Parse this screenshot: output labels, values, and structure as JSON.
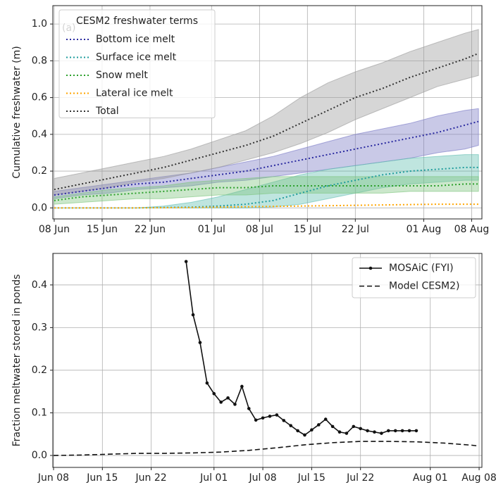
{
  "chart_data": [
    {
      "type": "line",
      "ylabel": "Cumulative freshwater (m)",
      "panel_label": "(a)",
      "legend_title": "CESM2 freshwater terms",
      "legend_loc": "upper left",
      "grid": true,
      "xlim": [
        7.8,
        70.5
      ],
      "ylim": [
        -0.06,
        1.1
      ],
      "xticks": [
        {
          "value": 8,
          "label": "08 Jun"
        },
        {
          "value": 15,
          "label": "15 Jun"
        },
        {
          "value": 22,
          "label": "22 Jun"
        },
        {
          "value": 31,
          "label": "01 Jul"
        },
        {
          "value": 38,
          "label": "08 Jul"
        },
        {
          "value": 45,
          "label": "15 Jul"
        },
        {
          "value": 52,
          "label": "22 Jul"
        },
        {
          "value": 62,
          "label": "01 Aug"
        },
        {
          "value": 69,
          "label": "08 Aug"
        }
      ],
      "yticks": [
        {
          "value": 0,
          "label": "0.0"
        },
        0.2,
        0.4,
        0.6,
        0.8,
        {
          "value": 1,
          "label": "1.0"
        }
      ],
      "x": [
        8,
        12,
        16,
        20,
        24,
        28,
        32,
        36,
        40,
        44,
        48,
        52,
        56,
        60,
        64,
        68,
        70
      ],
      "series": [
        {
          "name": "Bottom ice melt",
          "color": "#2a2aa0",
          "band_color": "#7777c4",
          "linestyle": "dotted",
          "values": [
            0.07,
            0.09,
            0.11,
            0.13,
            0.14,
            0.16,
            0.18,
            0.2,
            0.23,
            0.26,
            0.29,
            0.32,
            0.35,
            0.38,
            0.41,
            0.45,
            0.47
          ],
          "lower": [
            0.05,
            0.07,
            0.08,
            0.1,
            0.11,
            0.12,
            0.14,
            0.15,
            0.17,
            0.19,
            0.21,
            0.23,
            0.25,
            0.27,
            0.3,
            0.32,
            0.34
          ],
          "upper": [
            0.09,
            0.11,
            0.13,
            0.15,
            0.17,
            0.19,
            0.22,
            0.25,
            0.28,
            0.32,
            0.36,
            0.4,
            0.43,
            0.46,
            0.5,
            0.53,
            0.54
          ]
        },
        {
          "name": "Surface ice melt",
          "color": "#1f9c9c",
          "band_color": "#5fbdb0",
          "linestyle": "dotted",
          "values": [
            0,
            0,
            0,
            0,
            0.002,
            0.004,
            0.01,
            0.02,
            0.04,
            0.08,
            0.12,
            0.15,
            0.18,
            0.2,
            0.21,
            0.22,
            0.22
          ],
          "lower": [
            0,
            0,
            0,
            0,
            0,
            0,
            0,
            0,
            0.005,
            0.02,
            0.05,
            0.08,
            0.11,
            0.13,
            0.14,
            0.15,
            0.15
          ],
          "upper": [
            0,
            0,
            0,
            0,
            0.01,
            0.03,
            0.06,
            0.1,
            0.14,
            0.18,
            0.21,
            0.23,
            0.25,
            0.27,
            0.28,
            0.29,
            0.29
          ]
        },
        {
          "name": "Snow melt",
          "color": "#2ca02c",
          "band_color": "#7cc47c",
          "linestyle": "dotted",
          "values": [
            0.04,
            0.06,
            0.07,
            0.08,
            0.09,
            0.1,
            0.11,
            0.11,
            0.12,
            0.12,
            0.12,
            0.12,
            0.12,
            0.12,
            0.12,
            0.13,
            0.13
          ],
          "lower": [
            0.02,
            0.03,
            0.04,
            0.05,
            0.05,
            0.06,
            0.07,
            0.07,
            0.08,
            0.08,
            0.08,
            0.08,
            0.08,
            0.09,
            0.09,
            0.09,
            0.09
          ],
          "upper": [
            0.06,
            0.08,
            0.1,
            0.11,
            0.12,
            0.14,
            0.15,
            0.16,
            0.17,
            0.17,
            0.17,
            0.17,
            0.17,
            0.17,
            0.17,
            0.17,
            0.17
          ]
        },
        {
          "name": "Lateral ice melt",
          "color": "#ffa500",
          "linestyle": "dotted",
          "values": [
            0,
            0,
            0,
            0,
            0.001,
            0.002,
            0.004,
            0.006,
            0.008,
            0.01,
            0.012,
            0.014,
            0.016,
            0.018,
            0.02,
            0.02,
            0.02
          ]
        },
        {
          "name": "Total",
          "color": "#333333",
          "band_color": "#999999",
          "linestyle": "dotted",
          "values": [
            0.1,
            0.13,
            0.16,
            0.19,
            0.22,
            0.26,
            0.3,
            0.34,
            0.39,
            0.46,
            0.53,
            0.6,
            0.65,
            0.71,
            0.76,
            0.81,
            0.84
          ],
          "lower": [
            0.07,
            0.09,
            0.11,
            0.14,
            0.16,
            0.19,
            0.22,
            0.26,
            0.3,
            0.35,
            0.41,
            0.48,
            0.54,
            0.6,
            0.66,
            0.7,
            0.72
          ],
          "upper": [
            0.16,
            0.19,
            0.22,
            0.25,
            0.28,
            0.32,
            0.37,
            0.42,
            0.5,
            0.6,
            0.68,
            0.74,
            0.79,
            0.85,
            0.9,
            0.95,
            0.97
          ]
        }
      ]
    },
    {
      "type": "line",
      "ylabel": "Fraction meltwater stored in ponds",
      "legend_loc": "upper right",
      "grid": true,
      "xlim": [
        7.9,
        69.4
      ],
      "ylim": [
        -0.028,
        0.474
      ],
      "xticks": [
        {
          "value": 8,
          "label": "Jun 08"
        },
        {
          "value": 15,
          "label": "Jun 15"
        },
        {
          "value": 22,
          "label": "Jun 22"
        },
        {
          "value": 31,
          "label": "Jul 01"
        },
        {
          "value": 38,
          "label": "Jul 08"
        },
        {
          "value": 45,
          "label": "Jul 15"
        },
        {
          "value": 52,
          "label": "Jul 22"
        },
        {
          "value": 62,
          "label": "Aug 01"
        },
        {
          "value": 69,
          "label": "Aug 08"
        }
      ],
      "yticks": [
        {
          "value": 0,
          "label": "0.0"
        },
        0.1,
        0.2,
        0.3,
        0.4
      ],
      "series": [
        {
          "name": "MOSAiC (FYI)",
          "color": "#111111",
          "linestyle": "solid",
          "marker": "o",
          "x": [
            27,
            28,
            29,
            30,
            31,
            32,
            33,
            34,
            35,
            36,
            37,
            38,
            39,
            40,
            41,
            42,
            43,
            44,
            45,
            46,
            47,
            48,
            49,
            50,
            51,
            52,
            53,
            54,
            55,
            56,
            57,
            58,
            59,
            60
          ],
          "values": [
            0.455,
            0.33,
            0.265,
            0.17,
            0.145,
            0.125,
            0.135,
            0.12,
            0.162,
            0.11,
            0.083,
            0.088,
            0.092,
            0.095,
            0.082,
            0.07,
            0.058,
            0.048,
            0.06,
            0.072,
            0.085,
            0.068,
            0.055,
            0.052,
            0.068,
            0.063,
            0.058,
            0.055,
            0.052,
            0.058,
            0.058,
            0.058,
            0.058,
            0.058
          ]
        },
        {
          "name": "Model CESM2)",
          "color": "#111111",
          "linestyle": "dashed",
          "x": [
            8,
            12,
            16,
            20,
            24,
            28,
            32,
            36,
            40,
            44,
            48,
            52,
            56,
            60,
            64,
            68,
            69
          ],
          "values": [
            0,
            0.001,
            0.003,
            0.005,
            0.005,
            0.006,
            0.008,
            0.012,
            0.018,
            0.025,
            0.03,
            0.033,
            0.033,
            0.032,
            0.029,
            0.024,
            0.022
          ]
        }
      ]
    }
  ]
}
